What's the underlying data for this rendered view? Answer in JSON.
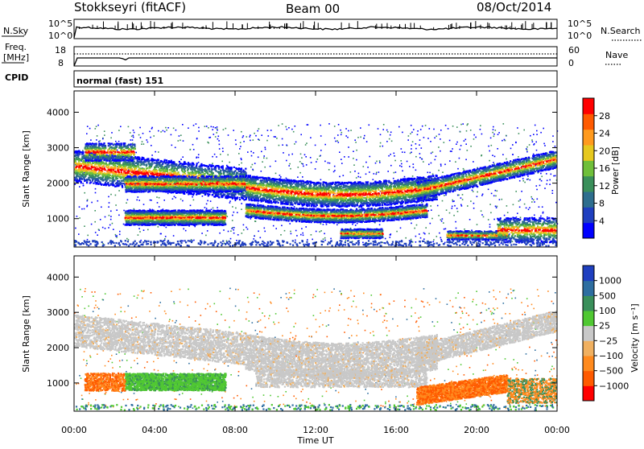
{
  "header": {
    "title": "Stokkseyri (fitACF)",
    "beam": "Beam 00",
    "date": "08/Oct/2014"
  },
  "top_panels": {
    "nsky_label": "N.Sky",
    "nsearch_label": "N.Search",
    "nsky_ticks": [
      "10^5",
      "10^0"
    ],
    "freq_label_line1": "Freq.",
    "freq_label_line2": "[MHz]",
    "freq_ticks": [
      "18",
      "8"
    ],
    "nave_label": "Nave",
    "nave_ticks": [
      "60",
      "0"
    ],
    "cpid_label": "CPID",
    "cpid_text": "normal (fast) 151"
  },
  "chart_data": [
    {
      "type": "heatmap",
      "name": "power",
      "ylabel": "Slant Range [km]",
      "ylim": [
        200,
        4600
      ],
      "yticks": [
        1000,
        2000,
        3000,
        4000
      ],
      "xlim": [
        "00:00",
        "24:00"
      ],
      "xticks": [
        "00:00",
        "04:00",
        "08:00",
        "12:00",
        "16:00",
        "20:00",
        "00:00"
      ],
      "colorbar": {
        "label": "Power [dB]",
        "ticks": [
          "28",
          "24",
          "20",
          "16",
          "12",
          "8",
          "4"
        ],
        "colors": [
          "#0000ff",
          "#1f3fbf",
          "#2e6e8e",
          "#3a8f5a",
          "#6fbf3a",
          "#e6c81e",
          "#ff9a1e",
          "#ff5a00",
          "#ff0000"
        ]
      }
    },
    {
      "type": "heatmap",
      "name": "velocity",
      "ylabel": "Slant Range [km]",
      "ylim": [
        200,
        4600
      ],
      "yticks": [
        1000,
        2000,
        3000,
        4000
      ],
      "xlim": [
        "00:00",
        "24:00"
      ],
      "xticks": [
        "00:00",
        "04:00",
        "08:00",
        "12:00",
        "16:00",
        "20:00",
        "00:00"
      ],
      "xlabel": "Time UT",
      "colorbar": {
        "label": "Velocity [m s⁻¹]",
        "ticks": [
          "1000",
          "500",
          "100",
          "25",
          "−25",
          "−100",
          "−500",
          "−1000"
        ],
        "colors": [
          "#ff0000",
          "#ff5a00",
          "#ff8a1e",
          "#f0b060",
          "#c8c8c8",
          "#50c832",
          "#3a8f5a",
          "#2e6ea0",
          "#1f3fbf"
        ]
      }
    }
  ]
}
